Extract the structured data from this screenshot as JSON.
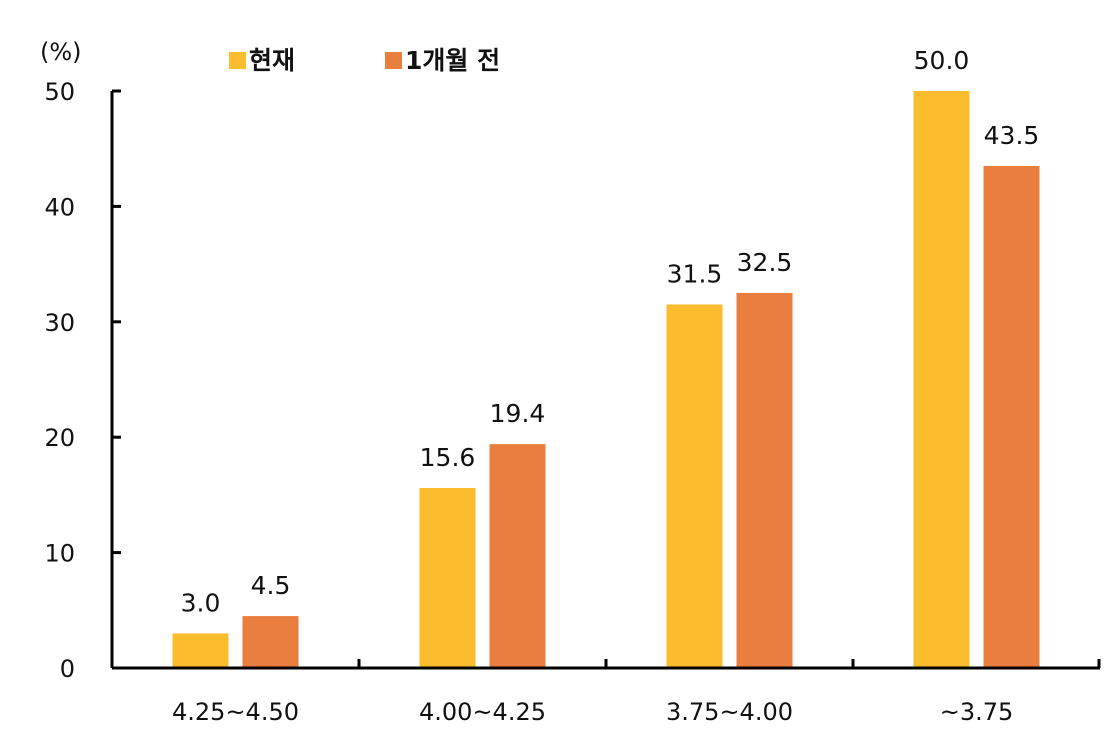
{
  "chart_data": {
    "type": "bar",
    "unit_label": "(%)",
    "categories": [
      "4.25~4.50",
      "4.00~4.25",
      "3.75~4.00",
      "~3.75"
    ],
    "series": [
      {
        "name": "현재",
        "values": [
          3.0,
          15.6,
          31.5,
          50.0
        ],
        "color": "#FBBC2E"
      },
      {
        "name": "1개월 전",
        "values": [
          4.5,
          19.4,
          32.5,
          43.5
        ],
        "color": "#EA7E3E"
      }
    ],
    "data_labels": [
      [
        "3.0",
        "15.6",
        "31.5",
        "50.0"
      ],
      [
        "4.5",
        "19.4",
        "32.5",
        "43.5"
      ]
    ],
    "yticks": [
      "0",
      "10",
      "20",
      "30",
      "40",
      "50"
    ],
    "ylim": [
      0,
      50
    ],
    "grid": false,
    "legend_position": "top"
  }
}
